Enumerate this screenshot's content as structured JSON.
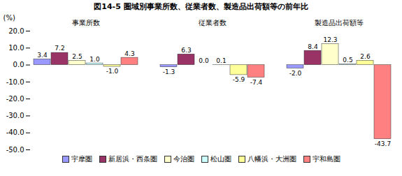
{
  "chart_data": {
    "type": "bar",
    "title": "図14-5 圏域別事業所数、従業者数、製造品出荷額等の前年比",
    "ylabel": "(%)",
    "categories": [
      "事業所数",
      "従業者数",
      "製造品出荷額等"
    ],
    "series": [
      {
        "name": "宇摩圏",
        "color": "#9999FF",
        "values": [
          3.4,
          -1.3,
          -2.0
        ],
        "value_labels": [
          "3.4",
          "-1.3",
          "-2.0"
        ]
      },
      {
        "name": "新居浜・西条圏",
        "color": "#993366",
        "values": [
          7.2,
          6.3,
          8.4
        ],
        "value_labels": [
          "7.2",
          "6.3",
          "8.4"
        ]
      },
      {
        "name": "今治圏",
        "color": "#FFFFCC",
        "values": [
          2.5,
          0.0,
          12.3
        ],
        "value_labels": [
          "2.5",
          "0.0",
          "12.3"
        ]
      },
      {
        "name": "松山圏",
        "color": "#CCFFFF",
        "values": [
          1.0,
          0.1,
          0.5
        ],
        "value_labels": [
          "1.0",
          "0.1",
          "0.5"
        ]
      },
      {
        "name": "八幡浜・大洲圏",
        "color": "#FFFF99",
        "values": [
          -1.0,
          -5.9,
          2.6
        ],
        "value_labels": [
          "-1.0",
          "-5.9",
          "2.6"
        ]
      },
      {
        "name": "宇和島圏",
        "color": "#FF8080",
        "values": [
          4.3,
          -7.4,
          -43.7
        ],
        "value_labels": [
          "4.3",
          "-7.4",
          "-43.7"
        ]
      }
    ],
    "ylim": [
      -50,
      20
    ],
    "yticks": [
      {
        "value": -50,
        "label": "-50.0"
      },
      {
        "value": -40,
        "label": "-40.0"
      },
      {
        "value": -30,
        "label": "-30.0"
      },
      {
        "value": -20,
        "label": "-20.0"
      },
      {
        "value": -10,
        "label": "-10.0"
      },
      {
        "value": 0,
        "label": "0.0"
      },
      {
        "value": 10,
        "label": "10.0"
      },
      {
        "value": 20,
        "label": "20.0"
      }
    ],
    "grid": false,
    "legend": "bottom",
    "data_labels": true
  }
}
